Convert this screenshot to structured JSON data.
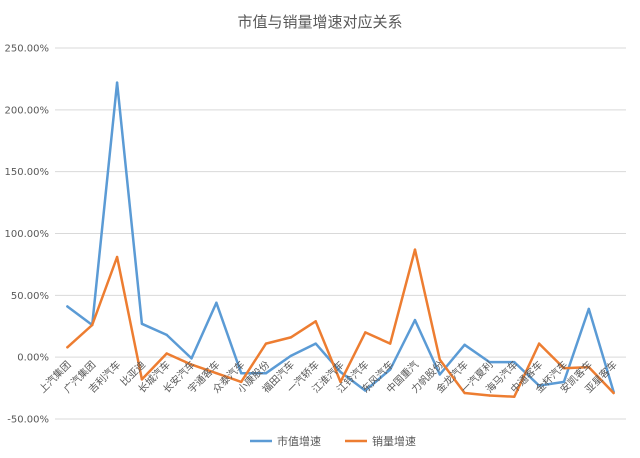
{
  "chart_data": {
    "type": "line",
    "title": "市值与销量增速对应关系",
    "xlabel": "",
    "ylabel": "",
    "ylim": [
      -50,
      250
    ],
    "yticks": [
      "250.00%",
      "200.00%",
      "150.00%",
      "100.00%",
      "50.00%",
      "0.00%",
      "-50.00%"
    ],
    "ytick_values": [
      250,
      200,
      150,
      100,
      50,
      0,
      -50
    ],
    "grid": true,
    "legend_position": "bottom",
    "categories": [
      "上汽集团",
      "广汽集团",
      "吉利汽车",
      "比亚迪",
      "长城汽车",
      "长安汽车",
      "宇通客车",
      "众泰汽车",
      "小康股份",
      "福田汽车",
      "一汽轿车",
      "江淮汽车",
      "江铃汽车",
      "东风汽车",
      "中国重汽",
      "力帆股份",
      "金龙汽车",
      "一汽夏利",
      "海马汽车",
      "中通客车",
      "金杯汽车",
      "安凯客车",
      "亚星客车"
    ],
    "series": [
      {
        "name": "市值增速",
        "color": "#5b9bd5",
        "values": [
          41,
          26,
          222,
          27,
          18,
          -1,
          44,
          -13,
          -13,
          1,
          11,
          -12,
          -27,
          -10,
          30,
          -14,
          10,
          -4,
          -4,
          -23,
          -20,
          39,
          -28
        ]
      },
      {
        "name": "销量增速",
        "color": "#ed7d31",
        "values": [
          8,
          26,
          81,
          -18,
          3,
          -6,
          -13,
          -20,
          11,
          16,
          29,
          -20,
          20,
          11,
          87,
          -2,
          -29,
          -31,
          -32,
          11,
          -9,
          -8,
          -29
        ]
      }
    ]
  }
}
